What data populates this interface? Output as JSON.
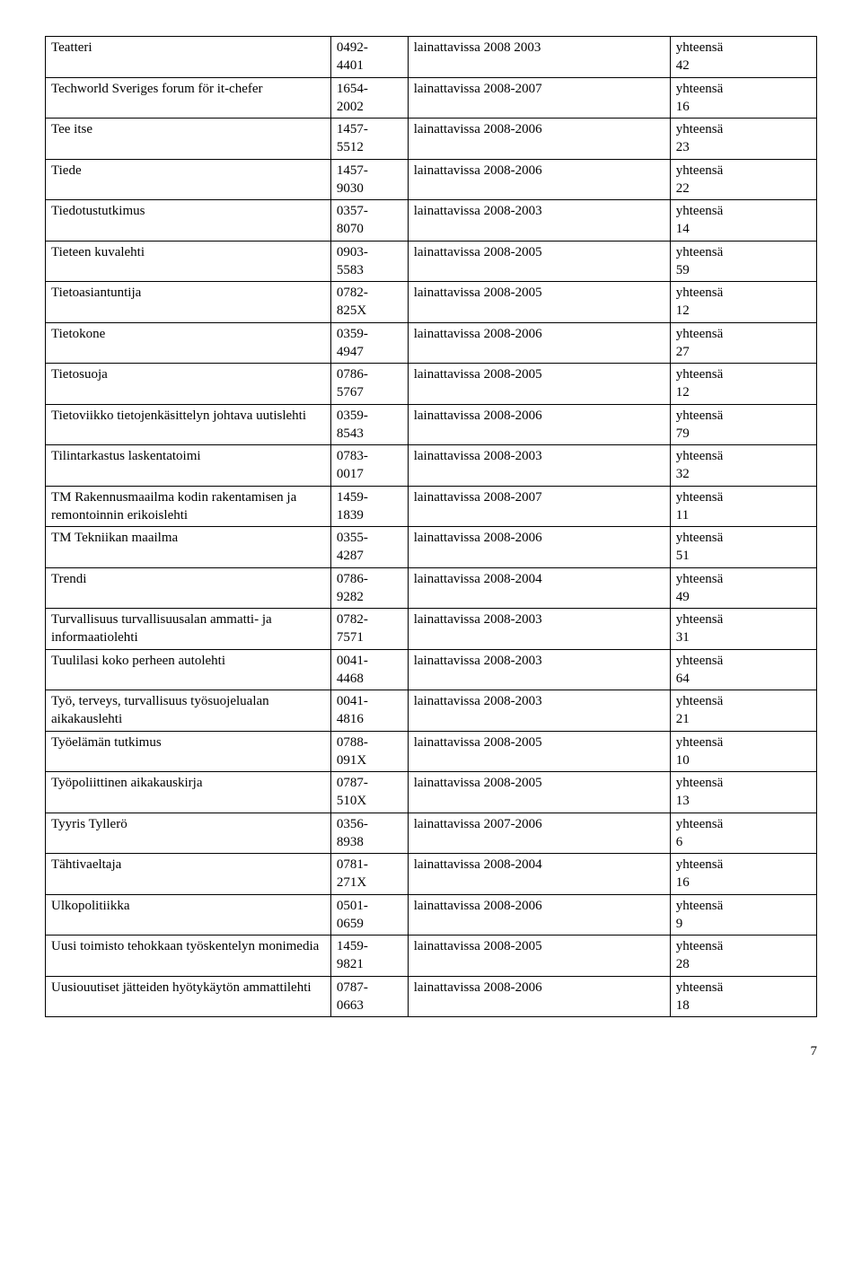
{
  "page_number": "7",
  "rows": [
    {
      "title": "Teatteri",
      "issn": "0492-4401",
      "avail": "lainattavissa 2008 2003",
      "total_label": "yhteensä",
      "total_value": "42"
    },
    {
      "title": "Techworld Sveriges forum för it-chefer",
      "issn": "1654-2002",
      "avail": "lainattavissa 2008-2007",
      "total_label": "yhteensä",
      "total_value": "16"
    },
    {
      "title": "Tee itse",
      "issn": "1457-5512",
      "avail": "lainattavissa 2008-2006",
      "total_label": "yhteensä",
      "total_value": "23"
    },
    {
      "title": "Tiede",
      "issn": "1457-9030",
      "avail": "lainattavissa 2008-2006",
      "total_label": "yhteensä",
      "total_value": "22"
    },
    {
      "title": "Tiedotustutkimus",
      "issn": "0357-8070",
      "avail": "lainattavissa 2008-2003",
      "total_label": "yhteensä",
      "total_value": "14"
    },
    {
      "title": "Tieteen kuvalehti",
      "issn": "0903-5583",
      "avail": "lainattavissa 2008-2005",
      "total_label": "yhteensä",
      "total_value": "59"
    },
    {
      "title": "Tietoasiantuntija",
      "issn": "0782-825X",
      "avail": "lainattavissa 2008-2005",
      "total_label": "yhteensä",
      "total_value": "12"
    },
    {
      "title": "Tietokone",
      "issn": "0359-4947",
      "avail": "lainattavissa 2008-2006",
      "total_label": "yhteensä",
      "total_value": "27"
    },
    {
      "title": "Tietosuoja",
      "issn": "0786-5767",
      "avail": "lainattavissa 2008-2005",
      "total_label": "yhteensä",
      "total_value": "12"
    },
    {
      "title": "Tietoviikko tietojenkäsittelyn johtava uutislehti",
      "issn": "0359-8543",
      "avail": "lainattavissa 2008-2006",
      "total_label": "yhteensä",
      "total_value": "79"
    },
    {
      "title": "Tilintarkastus laskentatoimi",
      "issn": "0783-0017",
      "avail": "lainattavissa 2008-2003",
      "total_label": "yhteensä",
      "total_value": "32"
    },
    {
      "title": "TM Rakennusmaailma kodin rakentamisen ja remontoinnin erikoislehti",
      "issn": "1459-1839",
      "avail": "lainattavissa 2008-2007",
      "total_label": "yhteensä",
      "total_value": "11"
    },
    {
      "title": "TM Tekniikan maailma",
      "issn": "0355-4287",
      "avail": "lainattavissa 2008-2006",
      "total_label": "yhteensä",
      "total_value": "51"
    },
    {
      "title": "Trendi",
      "issn": "0786-9282",
      "avail": "lainattavissa 2008-2004",
      "total_label": "yhteensä",
      "total_value": "49"
    },
    {
      "title": "Turvallisuus turvallisuusalan ammatti- ja informaatiolehti",
      "issn": "0782-7571",
      "avail": "lainattavissa 2008-2003",
      "total_label": "yhteensä",
      "total_value": "31"
    },
    {
      "title": "Tuulilasi koko perheen autolehti",
      "issn": "0041-4468",
      "avail": "lainattavissa 2008-2003",
      "total_label": "yhteensä",
      "total_value": "64"
    },
    {
      "title": "Työ, terveys, turvallisuus työsuojelualan aikakauslehti",
      "issn": "0041-4816",
      "avail": "lainattavissa 2008-2003",
      "total_label": "yhteensä",
      "total_value": "21"
    },
    {
      "title": "Työelämän tutkimus",
      "issn": "0788-091X",
      "avail": "lainattavissa 2008-2005",
      "total_label": "yhteensä",
      "total_value": "10"
    },
    {
      "title": "Työpoliittinen aikakauskirja",
      "issn": "0787-510X",
      "avail": "lainattavissa 2008-2005",
      "total_label": "yhteensä",
      "total_value": "13"
    },
    {
      "title": "Tyyris Tyllerö",
      "issn": "0356-8938",
      "avail": "lainattavissa 2007-2006",
      "total_label": "yhteensä",
      "total_value": "6"
    },
    {
      "title": "Tähtivaeltaja",
      "issn": "0781-271X",
      "avail": "lainattavissa 2008-2004",
      "total_label": "yhteensä",
      "total_value": "16"
    },
    {
      "title": "Ulkopolitiikka",
      "issn": "0501-0659",
      "avail": "lainattavissa 2008-2006",
      "total_label": "yhteensä",
      "total_value": "9"
    },
    {
      "title": "Uusi toimisto tehokkaan työskentelyn monimedia",
      "issn": "1459-9821",
      "avail": "lainattavissa 2008-2005",
      "total_label": "yhteensä",
      "total_value": "28"
    },
    {
      "title": "Uusiouutiset jätteiden hyötykäytön ammattilehti",
      "issn": "0787-0663",
      "avail": "lainattavissa 2008-2006",
      "total_label": "yhteensä",
      "total_value": "18"
    }
  ]
}
